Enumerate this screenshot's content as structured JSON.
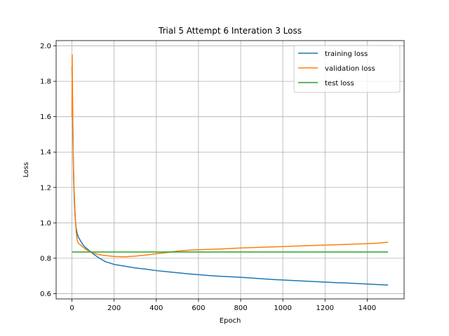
{
  "chart_data": {
    "type": "line",
    "title": "Trial 5 Attempt 6 Interation 3 Loss",
    "xlabel": "Epoch",
    "ylabel": "Loss",
    "xlim": [
      -75,
      1575
    ],
    "ylim": [
      0.57,
      2.03
    ],
    "xticks": [
      0,
      200,
      400,
      600,
      800,
      1000,
      1200,
      1400
    ],
    "yticks": [
      0.6,
      0.8,
      1.0,
      1.2,
      1.4,
      1.6,
      1.8,
      2.0
    ],
    "grid": true,
    "legend_position": "top-right",
    "series": [
      {
        "name": "training loss",
        "color": "#1f77b4",
        "x": [
          0,
          2,
          5,
          8,
          12,
          16,
          20,
          25,
          30,
          40,
          50,
          60,
          80,
          100,
          130,
          160,
          200,
          250,
          300,
          350,
          400,
          450,
          500,
          550,
          600,
          650,
          700,
          750,
          800,
          850,
          900,
          950,
          1000,
          1050,
          1100,
          1150,
          1200,
          1250,
          1300,
          1350,
          1400,
          1450,
          1499
        ],
        "y": [
          1.88,
          1.7,
          1.45,
          1.25,
          1.1,
          1.02,
          0.97,
          0.94,
          0.92,
          0.9,
          0.88,
          0.865,
          0.845,
          0.825,
          0.8,
          0.78,
          0.765,
          0.755,
          0.745,
          0.738,
          0.73,
          0.724,
          0.718,
          0.712,
          0.707,
          0.702,
          0.698,
          0.695,
          0.692,
          0.688,
          0.684,
          0.68,
          0.677,
          0.674,
          0.671,
          0.668,
          0.665,
          0.662,
          0.66,
          0.657,
          0.654,
          0.651,
          0.648
        ]
      },
      {
        "name": "validation loss",
        "color": "#ff7f0e",
        "x": [
          0,
          1,
          3,
          6,
          10,
          15,
          20,
          25,
          30,
          40,
          50,
          60,
          80,
          100,
          130,
          160,
          200,
          250,
          300,
          350,
          400,
          450,
          500,
          550,
          600,
          650,
          700,
          750,
          800,
          850,
          900,
          950,
          1000,
          1050,
          1100,
          1150,
          1200,
          1250,
          1300,
          1350,
          1400,
          1450,
          1499
        ],
        "y": [
          1.6,
          1.95,
          1.7,
          1.4,
          1.2,
          1.05,
          0.95,
          0.9,
          0.885,
          0.875,
          0.865,
          0.855,
          0.84,
          0.83,
          0.82,
          0.815,
          0.81,
          0.808,
          0.812,
          0.818,
          0.825,
          0.832,
          0.84,
          0.845,
          0.848,
          0.85,
          0.852,
          0.855,
          0.858,
          0.86,
          0.862,
          0.864,
          0.866,
          0.868,
          0.87,
          0.872,
          0.874,
          0.876,
          0.878,
          0.88,
          0.882,
          0.885,
          0.89
        ]
      },
      {
        "name": "test loss",
        "color": "#2ca02c",
        "x": [
          0,
          1499
        ],
        "y": [
          0.835,
          0.835
        ]
      }
    ]
  }
}
